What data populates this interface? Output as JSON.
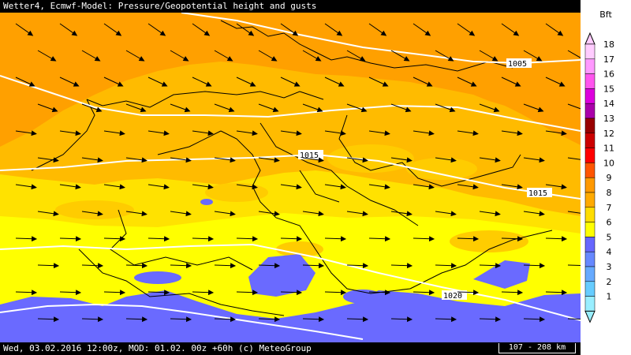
{
  "title": "Wetter4, Ecmwf-Model: Pressure/Geopotential height and gusts",
  "status": "Wed, 03.02.2016 12:00z, MOD: 01.02. 00z +60h (c) MeteoGroup",
  "scale_label": "107 - 208 km",
  "legend": {
    "unit": "Bft",
    "levels": [
      {
        "label": "18",
        "color": "#ffccff"
      },
      {
        "label": "17",
        "color": "#ff99ff"
      },
      {
        "label": "16",
        "color": "#ff55ee"
      },
      {
        "label": "15",
        "color": "#dd00dd"
      },
      {
        "label": "14",
        "color": "#aa00aa"
      },
      {
        "label": "13",
        "color": "#990000"
      },
      {
        "label": "12",
        "color": "#cc0000"
      },
      {
        "label": "11",
        "color": "#ff0000"
      },
      {
        "label": "10",
        "color": "#ff5500"
      },
      {
        "label": "9",
        "color": "#ff9900"
      },
      {
        "label": "8",
        "color": "#ffaa00"
      },
      {
        "label": "7",
        "color": "#ffdd00"
      },
      {
        "label": "6",
        "color": "#ffff00"
      },
      {
        "label": "5",
        "color": "#6666ff"
      },
      {
        "label": "4",
        "color": "#6688ff"
      },
      {
        "label": "3",
        "color": "#66aaff"
      },
      {
        "label": "2",
        "color": "#66ccff"
      },
      {
        "label": "1",
        "color": "#99eeff"
      }
    ]
  },
  "isobars": [
    {
      "label": "1005"
    },
    {
      "label": "1015"
    },
    {
      "label": "1015"
    },
    {
      "label": "1020"
    }
  ],
  "colors": {
    "bft9": "#ffa000",
    "bft8": "#ffc000",
    "bft7": "#ffe000",
    "bft6": "#ffff00",
    "bft5": "#6a6aff"
  }
}
